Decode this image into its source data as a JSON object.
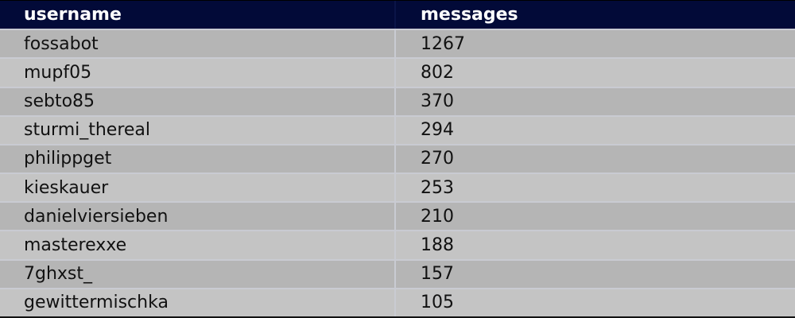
{
  "table": {
    "columns": [
      "username",
      "messages"
    ],
    "rows": [
      {
        "username": "fossabot",
        "messages": "1267"
      },
      {
        "username": "mupf05",
        "messages": "802"
      },
      {
        "username": "sebto85",
        "messages": "370"
      },
      {
        "username": "sturmi_thereal",
        "messages": "294"
      },
      {
        "username": "philippget",
        "messages": "270"
      },
      {
        "username": "kieskauer",
        "messages": "253"
      },
      {
        "username": "danielviersieben",
        "messages": "210"
      },
      {
        "username": "masterexxe",
        "messages": "188"
      },
      {
        "username": "7ghxst_",
        "messages": "157"
      },
      {
        "username": "gewittermischka",
        "messages": "105"
      }
    ]
  },
  "colors": {
    "header_bg": "#020a38",
    "row_odd": "#b5b5b5",
    "row_even": "#c4c4c4"
  }
}
